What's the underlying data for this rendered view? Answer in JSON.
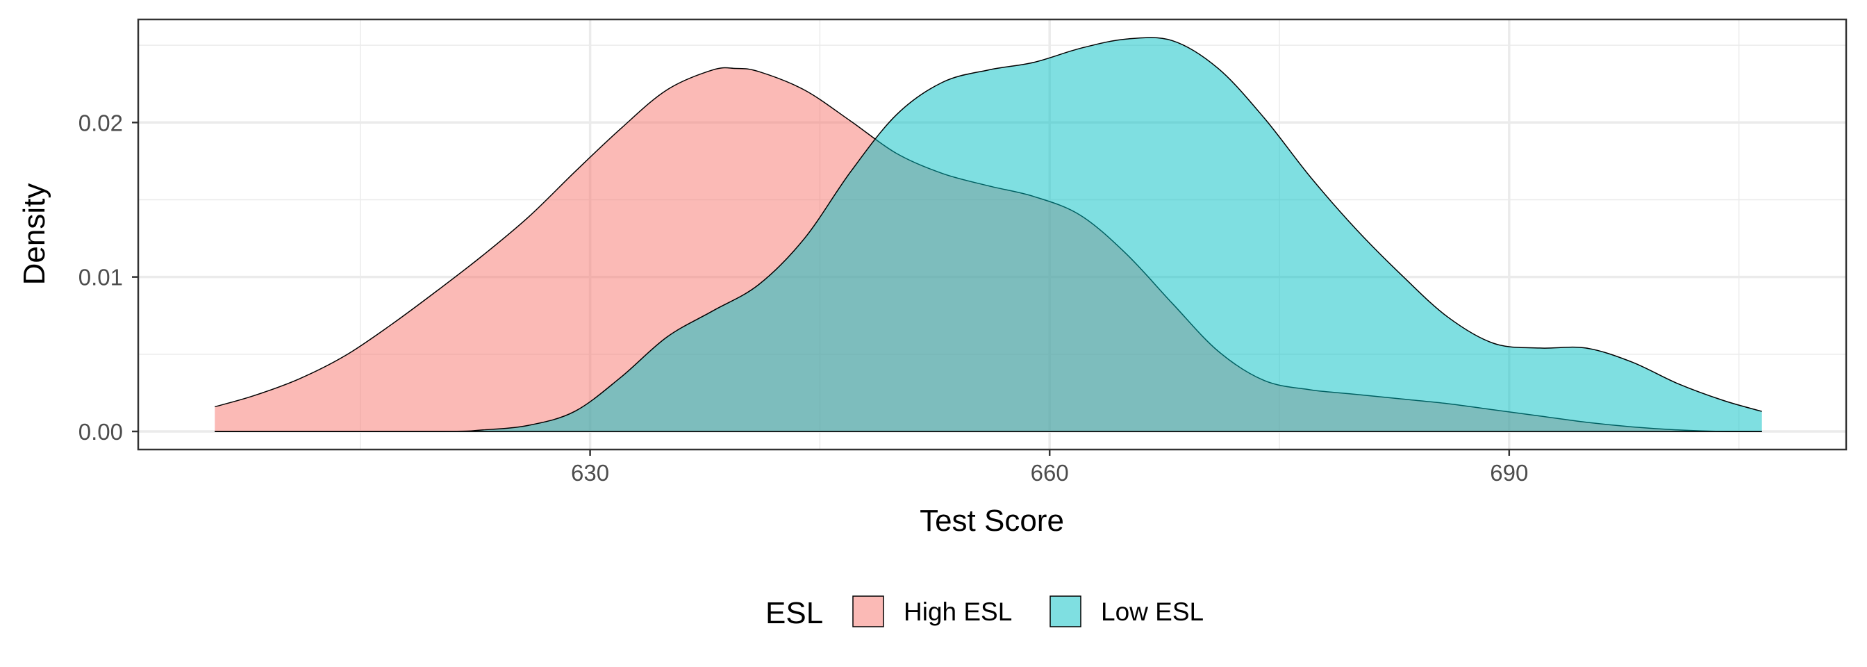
{
  "chart_data": {
    "type": "area",
    "title": "",
    "xlabel": "Test Score",
    "ylabel": "Density",
    "xlim": [
      600.5,
      712
    ],
    "ylim": [
      -0.00117,
      0.02667
    ],
    "x_ticks": [
      630,
      660,
      690
    ],
    "x_tick_labels": [
      "630",
      "660",
      "690"
    ],
    "x_minor_ticks": [
      615,
      645,
      675,
      705
    ],
    "y_ticks": [
      0.0,
      0.01,
      0.02
    ],
    "y_tick_labels": [
      "0.00",
      "0.01",
      "0.02"
    ],
    "y_minor_ticks": [
      0.005,
      0.015,
      0.025
    ],
    "grid": true,
    "legend": {
      "title": "ESL",
      "position": "bottom",
      "entries": [
        "High ESL",
        "Low ESL"
      ]
    },
    "series": [
      {
        "name": "High ESL",
        "color": "#F8766D",
        "opacity": 0.5,
        "x": [
          605.5,
          608,
          611,
          614,
          617,
          620,
          623,
          626,
          629,
          632,
          635,
          638,
          639.5,
          641,
          644,
          647,
          650,
          653,
          656,
          659,
          662,
          665,
          668,
          671,
          674,
          677,
          680,
          683,
          686,
          689,
          692,
          695,
          698,
          701,
          704,
          706.5
        ],
        "values": [
          0.0016,
          0.0023,
          0.0034,
          0.0049,
          0.0069,
          0.0091,
          0.0114,
          0.0139,
          0.0168,
          0.0196,
          0.0221,
          0.0234,
          0.0235,
          0.0233,
          0.0221,
          0.0201,
          0.018,
          0.0167,
          0.0159,
          0.0152,
          0.014,
          0.0115,
          0.0083,
          0.0052,
          0.0033,
          0.0027,
          0.0024,
          0.0021,
          0.0018,
          0.0014,
          0.001,
          0.0006,
          0.0003,
          0.0001,
          0.0,
          0.0
        ]
      },
      {
        "name": "Low ESL",
        "color": "#00BFC4",
        "opacity": 0.5,
        "x": [
          605.5,
          620,
          623,
          626,
          629,
          632,
          635,
          638,
          641,
          644,
          647,
          650,
          653,
          656,
          659,
          662,
          665,
          668,
          671,
          674,
          677,
          680,
          683,
          686,
          689,
          692,
          695,
          698,
          701,
          704,
          706.5
        ],
        "values": [
          0.0,
          0.0,
          0.0001,
          0.0004,
          0.0013,
          0.0035,
          0.0061,
          0.0078,
          0.0095,
          0.0125,
          0.0168,
          0.0205,
          0.0226,
          0.0234,
          0.0239,
          0.0248,
          0.0254,
          0.0253,
          0.0235,
          0.0203,
          0.0165,
          0.0131,
          0.0101,
          0.0074,
          0.0057,
          0.0054,
          0.0054,
          0.0045,
          0.0031,
          0.002,
          0.0013
        ]
      }
    ]
  }
}
